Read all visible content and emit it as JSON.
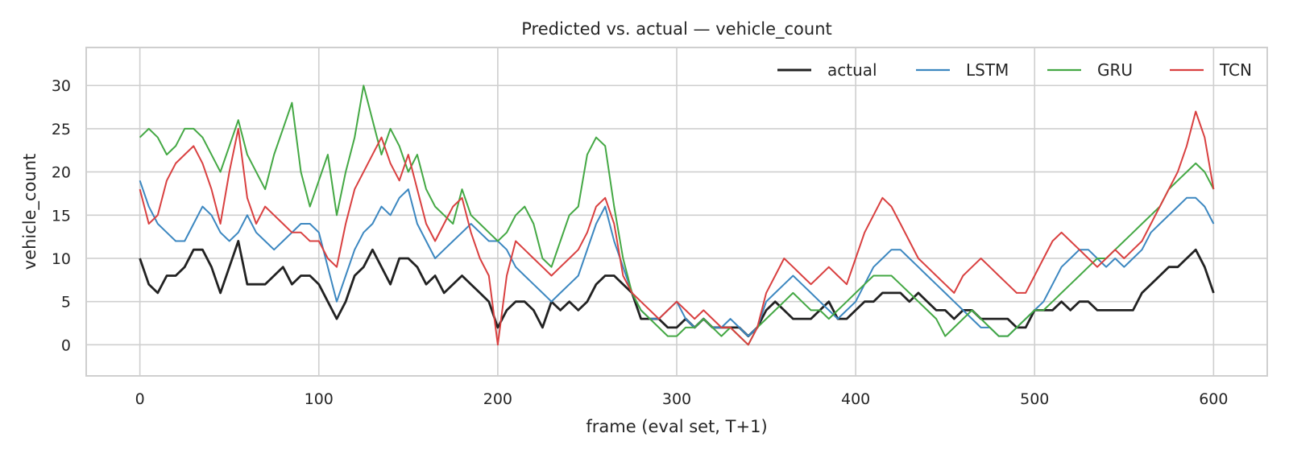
{
  "chart_data": {
    "type": "line",
    "title": "Predicted vs. actual — vehicle_count",
    "xlabel": "frame (eval set, T+1)",
    "ylabel": "vehicle_count",
    "xlim": [
      -30,
      630
    ],
    "ylim": [
      -3.6,
      34.4
    ],
    "xticks": [
      0,
      100,
      200,
      300,
      400,
      500,
      600
    ],
    "yticks": [
      0,
      5,
      10,
      15,
      20,
      25,
      30
    ],
    "grid": true,
    "legend_position": "top-right",
    "series": [
      {
        "name": "actual",
        "color": "#222222",
        "x": [
          0,
          5,
          10,
          15,
          20,
          25,
          30,
          35,
          40,
          45,
          50,
          55,
          60,
          65,
          70,
          75,
          80,
          85,
          90,
          95,
          100,
          105,
          110,
          115,
          120,
          125,
          130,
          135,
          140,
          145,
          150,
          155,
          160,
          165,
          170,
          175,
          180,
          185,
          190,
          195,
          200,
          205,
          210,
          215,
          220,
          225,
          230,
          235,
          240,
          245,
          250,
          255,
          260,
          265,
          270,
          275,
          280,
          285,
          290,
          295,
          300,
          305,
          310,
          315,
          320,
          325,
          330,
          335,
          340,
          345,
          350,
          355,
          360,
          365,
          370,
          375,
          380,
          385,
          390,
          395,
          400,
          405,
          410,
          415,
          420,
          425,
          430,
          435,
          440,
          445,
          450,
          455,
          460,
          465,
          470,
          475,
          480,
          485,
          490,
          495,
          500,
          505,
          510,
          515,
          520,
          525,
          530,
          535,
          540,
          545,
          550,
          555,
          560,
          565,
          570,
          575,
          580,
          585,
          590,
          595,
          600
        ],
        "values": [
          10,
          7,
          6,
          8,
          8,
          9,
          11,
          11,
          9,
          6,
          9,
          12,
          7,
          7,
          7,
          8,
          9,
          7,
          8,
          8,
          7,
          5,
          3,
          5,
          8,
          9,
          11,
          9,
          7,
          10,
          10,
          9,
          7,
          8,
          6,
          7,
          8,
          7,
          6,
          5,
          2,
          4,
          5,
          5,
          4,
          2,
          5,
          4,
          5,
          4,
          5,
          7,
          8,
          8,
          7,
          6,
          3,
          3,
          3,
          2,
          2,
          3,
          2,
          3,
          2,
          2,
          2,
          2,
          1,
          2,
          4,
          5,
          4,
          3,
          3,
          3,
          4,
          5,
          3,
          3,
          4,
          5,
          5,
          6,
          6,
          6,
          5,
          6,
          5,
          4,
          4,
          3,
          4,
          4,
          3,
          3,
          3,
          3,
          2,
          2,
          4,
          4,
          4,
          5,
          4,
          5,
          5,
          4,
          4,
          4,
          4,
          4,
          6,
          7,
          8,
          9,
          9,
          10,
          11,
          9,
          6
        ]
      },
      {
        "name": "LSTM",
        "color": "#3c87c0",
        "x": [
          0,
          5,
          10,
          15,
          20,
          25,
          30,
          35,
          40,
          45,
          50,
          55,
          60,
          65,
          70,
          75,
          80,
          85,
          90,
          95,
          100,
          105,
          110,
          115,
          120,
          125,
          130,
          135,
          140,
          145,
          150,
          155,
          160,
          165,
          170,
          175,
          180,
          185,
          190,
          195,
          200,
          205,
          210,
          215,
          220,
          225,
          230,
          235,
          240,
          245,
          250,
          255,
          260,
          265,
          270,
          275,
          280,
          285,
          290,
          295,
          300,
          305,
          310,
          315,
          320,
          325,
          330,
          335,
          340,
          345,
          350,
          355,
          360,
          365,
          370,
          375,
          380,
          385,
          390,
          395,
          400,
          405,
          410,
          415,
          420,
          425,
          430,
          435,
          440,
          445,
          450,
          455,
          460,
          465,
          470,
          475,
          480,
          485,
          490,
          495,
          500,
          505,
          510,
          515,
          520,
          525,
          530,
          535,
          540,
          545,
          550,
          555,
          560,
          565,
          570,
          575,
          580,
          585,
          590,
          595,
          600
        ],
        "values": [
          19,
          16,
          14,
          13,
          12,
          12,
          14,
          16,
          15,
          13,
          12,
          13,
          15,
          13,
          12,
          11,
          12,
          13,
          14,
          14,
          13,
          9,
          5,
          8,
          11,
          13,
          14,
          16,
          15,
          17,
          18,
          14,
          12,
          10,
          11,
          12,
          13,
          14,
          13,
          12,
          12,
          11,
          9,
          8,
          7,
          6,
          5,
          6,
          7,
          8,
          11,
          14,
          16,
          12,
          9,
          6,
          4,
          3,
          3,
          4,
          5,
          3,
          2,
          3,
          2,
          2,
          3,
          2,
          1,
          2,
          5,
          6,
          7,
          8,
          7,
          6,
          5,
          4,
          3,
          4,
          5,
          7,
          9,
          10,
          11,
          11,
          10,
          9,
          8,
          7,
          6,
          5,
          4,
          3,
          2,
          2,
          1,
          1,
          2,
          3,
          4,
          5,
          7,
          9,
          10,
          11,
          11,
          10,
          9,
          10,
          9,
          10,
          11,
          13,
          14,
          15,
          16,
          17,
          17,
          16,
          14
        ]
      },
      {
        "name": "GRU",
        "color": "#44a844",
        "x": [
          0,
          5,
          10,
          15,
          20,
          25,
          30,
          35,
          40,
          45,
          50,
          55,
          60,
          65,
          70,
          75,
          80,
          85,
          90,
          95,
          100,
          105,
          110,
          115,
          120,
          125,
          130,
          135,
          140,
          145,
          150,
          155,
          160,
          165,
          170,
          175,
          180,
          185,
          190,
          195,
          200,
          205,
          210,
          215,
          220,
          225,
          230,
          235,
          240,
          245,
          250,
          255,
          260,
          265,
          270,
          275,
          280,
          285,
          290,
          295,
          300,
          305,
          310,
          315,
          320,
          325,
          330,
          335,
          340,
          345,
          350,
          355,
          360,
          365,
          370,
          375,
          380,
          385,
          390,
          395,
          400,
          405,
          410,
          415,
          420,
          425,
          430,
          435,
          440,
          445,
          450,
          455,
          460,
          465,
          470,
          475,
          480,
          485,
          490,
          495,
          500,
          505,
          510,
          515,
          520,
          525,
          530,
          535,
          540,
          545,
          550,
          555,
          560,
          565,
          570,
          575,
          580,
          585,
          590,
          595,
          600
        ],
        "values": [
          24,
          25,
          24,
          22,
          23,
          25,
          25,
          24,
          22,
          20,
          23,
          26,
          22,
          20,
          18,
          22,
          25,
          28,
          20,
          16,
          19,
          22,
          15,
          20,
          24,
          30,
          26,
          22,
          25,
          23,
          20,
          22,
          18,
          16,
          15,
          14,
          18,
          15,
          14,
          13,
          12,
          13,
          15,
          16,
          14,
          10,
          9,
          12,
          15,
          16,
          22,
          24,
          23,
          16,
          10,
          6,
          4,
          3,
          2,
          1,
          1,
          2,
          2,
          3,
          2,
          1,
          2,
          1,
          0,
          2,
          3,
          4,
          5,
          6,
          5,
          4,
          4,
          3,
          4,
          5,
          6,
          7,
          8,
          8,
          8,
          7,
          6,
          5,
          4,
          3,
          1,
          2,
          3,
          4,
          3,
          2,
          1,
          1,
          2,
          3,
          4,
          4,
          5,
          6,
          7,
          8,
          9,
          10,
          10,
          11,
          12,
          13,
          14,
          15,
          16,
          18,
          19,
          20,
          21,
          20,
          18
        ]
      },
      {
        "name": "TCN",
        "color": "#d94040",
        "x": [
          0,
          5,
          10,
          15,
          20,
          25,
          30,
          35,
          40,
          45,
          50,
          55,
          60,
          65,
          70,
          75,
          80,
          85,
          90,
          95,
          100,
          105,
          110,
          115,
          120,
          125,
          130,
          135,
          140,
          145,
          150,
          155,
          160,
          165,
          170,
          175,
          180,
          185,
          190,
          195,
          200,
          205,
          210,
          215,
          220,
          225,
          230,
          235,
          240,
          245,
          250,
          255,
          260,
          265,
          270,
          275,
          280,
          285,
          290,
          295,
          300,
          305,
          310,
          315,
          320,
          325,
          330,
          335,
          340,
          345,
          350,
          355,
          360,
          365,
          370,
          375,
          380,
          385,
          390,
          395,
          400,
          405,
          410,
          415,
          420,
          425,
          430,
          435,
          440,
          445,
          450,
          455,
          460,
          465,
          470,
          475,
          480,
          485,
          490,
          495,
          500,
          505,
          510,
          515,
          520,
          525,
          530,
          535,
          540,
          545,
          550,
          555,
          560,
          565,
          570,
          575,
          580,
          585,
          590,
          595,
          600
        ],
        "values": [
          18,
          14,
          15,
          19,
          21,
          22,
          23,
          21,
          18,
          14,
          20,
          25,
          17,
          14,
          16,
          15,
          14,
          13,
          13,
          12,
          12,
          10,
          9,
          14,
          18,
          20,
          22,
          24,
          21,
          19,
          22,
          18,
          14,
          12,
          14,
          16,
          17,
          13,
          10,
          8,
          0,
          8,
          12,
          11,
          10,
          9,
          8,
          9,
          10,
          11,
          13,
          16,
          17,
          14,
          8,
          6,
          5,
          4,
          3,
          4,
          5,
          4,
          3,
          4,
          3,
          2,
          2,
          1,
          0,
          2,
          6,
          8,
          10,
          9,
          8,
          7,
          8,
          9,
          8,
          7,
          10,
          13,
          15,
          17,
          16,
          14,
          12,
          10,
          9,
          8,
          7,
          6,
          8,
          9,
          10,
          9,
          8,
          7,
          6,
          6,
          8,
          10,
          12,
          13,
          12,
          11,
          10,
          9,
          10,
          11,
          10,
          11,
          12,
          14,
          16,
          18,
          20,
          23,
          27,
          24,
          18
        ]
      }
    ]
  }
}
